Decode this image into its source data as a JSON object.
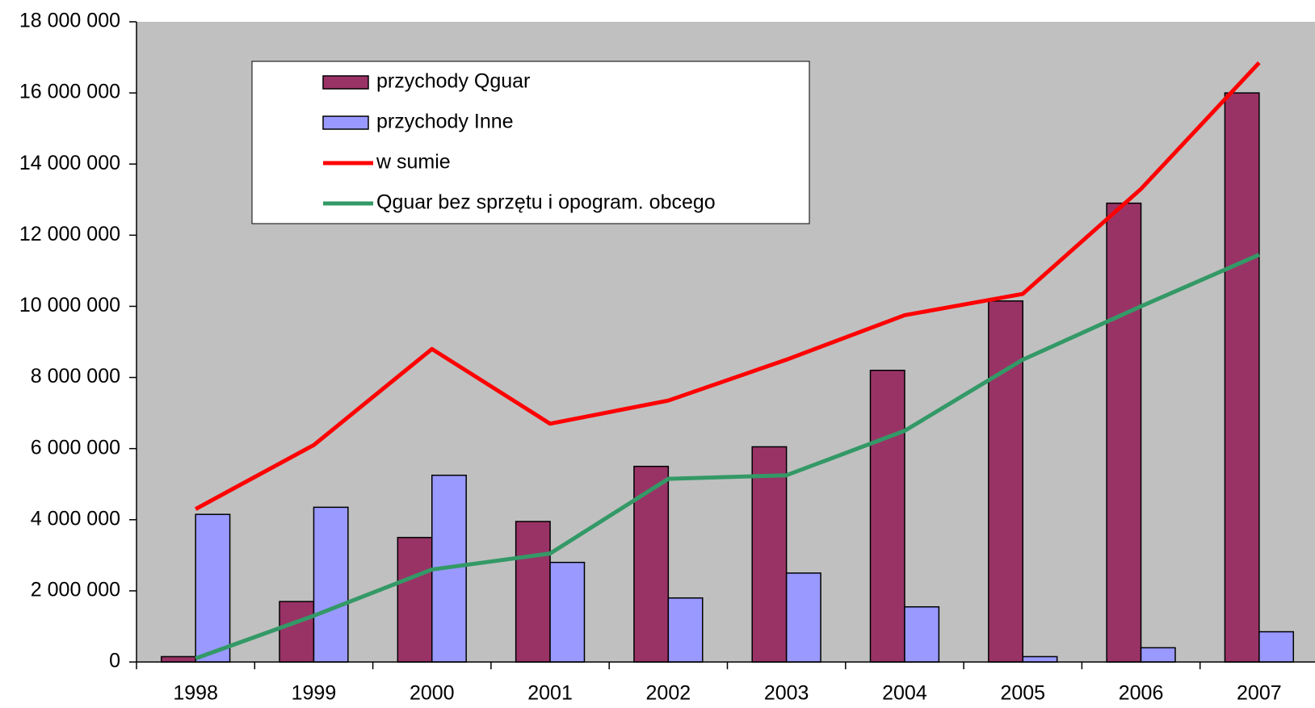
{
  "chart_data": {
    "type": "bar-line",
    "categories": [
      "1998",
      "1999",
      "2000",
      "2001",
      "2002",
      "2003",
      "2004",
      "2005",
      "2006",
      "2007"
    ],
    "series": [
      {
        "name": "przychody Qguar",
        "type": "bar",
        "color": "#993366",
        "values": [
          150000,
          1700000,
          3500000,
          3950000,
          5500000,
          6050000,
          8200000,
          10150000,
          12900000,
          16000000
        ]
      },
      {
        "name": "przychody Inne",
        "type": "bar",
        "color": "#9999ff",
        "values": [
          4150000,
          4350000,
          5250000,
          2800000,
          1800000,
          2500000,
          1550000,
          150000,
          400000,
          850000
        ]
      },
      {
        "name": "w sumie",
        "type": "line",
        "color": "#ff0000",
        "values": [
          4300000,
          6100000,
          8800000,
          6700000,
          7350000,
          8500000,
          9750000,
          10350000,
          13300000,
          16850000
        ]
      },
      {
        "name": "Qguar bez sprzętu i opogram. obcego",
        "type": "line",
        "color": "#339966",
        "values": [
          100000,
          1300000,
          2600000,
          3050000,
          5150000,
          5250000,
          6500000,
          8500000,
          10000000,
          11450000
        ]
      }
    ],
    "ylim": [
      0,
      18000000
    ],
    "yticks": [
      0,
      {
        "value": 2000000,
        "label": "2 000 000"
      },
      {
        "value": 4000000,
        "label": "4 000 000"
      },
      {
        "value": 6000000,
        "label": "6 000 000"
      },
      {
        "value": 8000000,
        "label": "8 000 000"
      },
      {
        "value": 10000000,
        "label": "10 000 000"
      },
      {
        "value": 12000000,
        "label": "12 000 000"
      },
      {
        "value": 14000000,
        "label": "14 000 000"
      },
      {
        "value": 16000000,
        "label": "16 000 000"
      },
      {
        "value": 18000000,
        "label": "18 000 000"
      }
    ],
    "plot_background": "#c0c0c0"
  }
}
